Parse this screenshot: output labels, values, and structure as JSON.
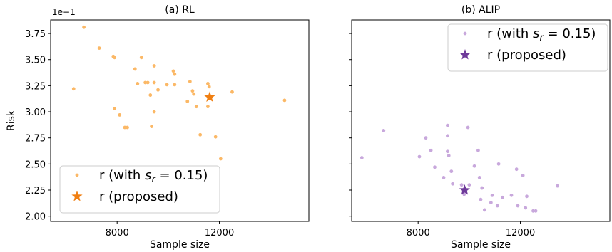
{
  "chart_data": [
    {
      "type": "scatter",
      "title": "(a) RL",
      "xlabel": "Sample size",
      "ylabel": "Risk",
      "y_offset_label": "1e−1",
      "xlim": [
        5400,
        15500
      ],
      "ylim": [
        1.95,
        3.88
      ],
      "xticks": [
        8000,
        12000
      ],
      "yticks": [
        2.0,
        2.25,
        2.5,
        2.75,
        3.0,
        3.25,
        3.5,
        3.75
      ],
      "legend_position": "lower-left",
      "legend": [
        "r (with s_r = 0.15)",
        "r (proposed)"
      ],
      "colors": {
        "sampled": "#fbb866",
        "proposed": "#f07f12"
      },
      "series": [
        {
          "name": "r (with s_r = 0.15)",
          "marker": "circle",
          "points": [
            [
              6700,
              3.81
            ],
            [
              7300,
              3.61
            ],
            [
              7850,
              3.53
            ],
            [
              7900,
              3.52
            ],
            [
              8950,
              3.52
            ],
            [
              6300,
              3.22
            ],
            [
              8700,
              3.41
            ],
            [
              9450,
              3.44
            ],
            [
              10200,
              3.39
            ],
            [
              10250,
              3.36
            ],
            [
              9100,
              3.28
            ],
            [
              9200,
              3.28
            ],
            [
              9450,
              3.28
            ],
            [
              9950,
              3.26
            ],
            [
              8800,
              3.27
            ],
            [
              10850,
              3.29
            ],
            [
              11550,
              3.27
            ],
            [
              11600,
              3.24
            ],
            [
              10250,
              3.26
            ],
            [
              9600,
              3.21
            ],
            [
              9300,
              3.16
            ],
            [
              10950,
              3.2
            ],
            [
              11000,
              3.17
            ],
            [
              10750,
              3.1
            ],
            [
              11100,
              3.05
            ],
            [
              11550,
              3.05
            ],
            [
              12500,
              3.19
            ],
            [
              14550,
              3.11
            ],
            [
              7900,
              3.03
            ],
            [
              8100,
              2.97
            ],
            [
              9450,
              3.0
            ],
            [
              8300,
              2.85
            ],
            [
              8400,
              2.85
            ],
            [
              9350,
              2.86
            ],
            [
              11250,
              2.78
            ],
            [
              11850,
              2.76
            ],
            [
              12050,
              2.55
            ]
          ]
        },
        {
          "name": "r (proposed)",
          "marker": "star",
          "points": [
            [
              11620,
              3.14
            ]
          ]
        }
      ]
    },
    {
      "type": "scatter",
      "title": "(b) ALIP",
      "xlabel": "Sample size",
      "ylabel": "",
      "xlim": [
        5400,
        15500
      ],
      "ylim": [
        1.95,
        3.88
      ],
      "xticks": [
        8000,
        12000
      ],
      "yticks": [
        2.0,
        2.25,
        2.5,
        2.75,
        3.0,
        3.25,
        3.5,
        3.75
      ],
      "y_ticklabels_visible": false,
      "legend_position": "upper-right",
      "legend": [
        "r (with s_r = 0.15)",
        "r (proposed)"
      ],
      "colors": {
        "sampled": "#c8a8dc",
        "proposed": "#6e3a9a"
      },
      "series": [
        {
          "name": "r (with s_r = 0.15)",
          "marker": "circle",
          "points": [
            [
              5800,
              2.56
            ],
            [
              6650,
              2.82
            ],
            [
              8050,
              2.57
            ],
            [
              8300,
              2.75
            ],
            [
              8500,
              2.63
            ],
            [
              8650,
              2.47
            ],
            [
              9150,
              2.87
            ],
            [
              9150,
              2.77
            ],
            [
              9150,
              2.62
            ],
            [
              9200,
              2.58
            ],
            [
              9950,
              2.85
            ],
            [
              9000,
              2.37
            ],
            [
              9300,
              2.43
            ],
            [
              9350,
              2.31
            ],
            [
              9700,
              2.3
            ],
            [
              9800,
              2.21
            ],
            [
              10000,
              2.3
            ],
            [
              10200,
              2.48
            ],
            [
              10350,
              2.63
            ],
            [
              10400,
              2.37
            ],
            [
              10500,
              2.27
            ],
            [
              10450,
              2.16
            ],
            [
              10600,
              2.06
            ],
            [
              10850,
              2.13
            ],
            [
              10900,
              2.2
            ],
            [
              11100,
              2.1
            ],
            [
              11150,
              2.5
            ],
            [
              11300,
              2.18
            ],
            [
              11650,
              2.2
            ],
            [
              11850,
              2.45
            ],
            [
              11900,
              2.1
            ],
            [
              12100,
              2.39
            ],
            [
              12200,
              2.08
            ],
            [
              12250,
              2.19
            ],
            [
              12500,
              2.05
            ],
            [
              12600,
              2.05
            ],
            [
              13450,
              2.29
            ]
          ]
        },
        {
          "name": "r (proposed)",
          "marker": "star",
          "points": [
            [
              9820,
              2.25
            ]
          ]
        }
      ]
    }
  ]
}
